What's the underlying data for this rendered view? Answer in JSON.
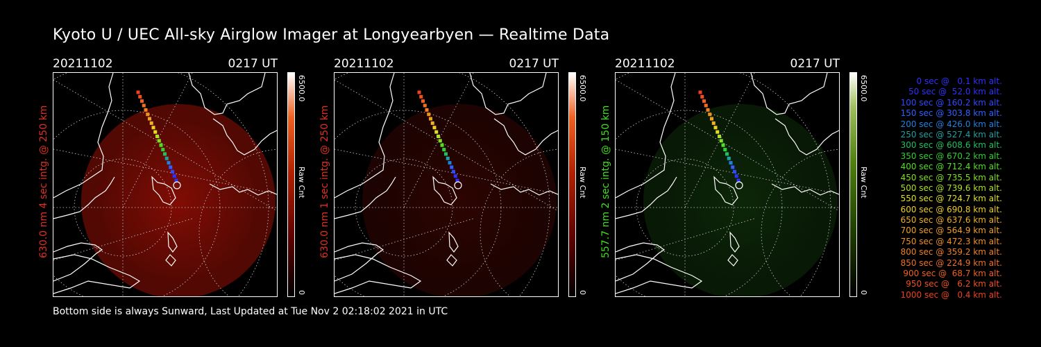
{
  "title": "Kyoto U / UEC All-sky Airglow Imager at Longyearbyen — Realtime Data",
  "footer": "Bottom side is always Sunward, Last Updated at Tue Nov  2 02:18:02 2021 in UTC",
  "panels": [
    {
      "date": "20211102",
      "time": "0217 UT",
      "side_label": "630.0 nm 4 sec intg. @ 250 km",
      "side_color": "#e03020",
      "cbar_max": "6500.0",
      "cbar_min": "0",
      "cbar_unit": "Raw Cnt",
      "glow": "red",
      "intensity": 1.0
    },
    {
      "date": "20211102",
      "time": "0217 UT",
      "side_label": "630.0 nm 1 sec intg. @ 250 km",
      "side_color": "#e03020",
      "cbar_max": "6500.0",
      "cbar_min": "0",
      "cbar_unit": "Raw Cnt",
      "glow": "red",
      "intensity": 0.35
    },
    {
      "date": "20211102",
      "time": "0217 UT",
      "side_label": "557.7 nm 2 sec intg. @ 150 km",
      "side_color": "#40e020",
      "cbar_max": "6500.0",
      "cbar_min": "0",
      "cbar_unit": "Raw Cnt",
      "glow": "green",
      "intensity": 0.5
    }
  ],
  "legend": [
    {
      "text": "0 sec @   0.1 km alt.",
      "color": "#3030ff"
    },
    {
      "text": "50 sec @  52.0 km alt.",
      "color": "#3030ff"
    },
    {
      "text": "100 sec @ 160.2 km alt.",
      "color": "#3048ff"
    },
    {
      "text": "150 sec @ 303.8 km alt.",
      "color": "#3060ff"
    },
    {
      "text": "200 sec @ 426.0 km alt.",
      "color": "#2080e0"
    },
    {
      "text": "250 sec @ 527.4 km alt.",
      "color": "#20a0a0"
    },
    {
      "text": "300 sec @ 608.6 km alt.",
      "color": "#20c060"
    },
    {
      "text": "350 sec @ 670.2 km alt.",
      "color": "#30d030"
    },
    {
      "text": "400 sec @ 712.4 km alt.",
      "color": "#50e020"
    },
    {
      "text": "450 sec @ 735.5 km alt.",
      "color": "#80e020"
    },
    {
      "text": "500 sec @ 739.6 km alt.",
      "color": "#b0e020"
    },
    {
      "text": "550 sec @ 724.7 km alt.",
      "color": "#e0e020"
    },
    {
      "text": "600 sec @ 690.8 km alt.",
      "color": "#f0d020"
    },
    {
      "text": "650 sec @ 637.6 km alt.",
      "color": "#f0b020"
    },
    {
      "text": "700 sec @ 564.9 km alt.",
      "color": "#f0a020"
    },
    {
      "text": "750 sec @ 472.3 km alt.",
      "color": "#f09020"
    },
    {
      "text": "800 sec @ 359.2 km alt.",
      "color": "#f08020"
    },
    {
      "text": "850 sec @ 224.9 km alt.",
      "color": "#f07020"
    },
    {
      "text": "900 sec @  68.7 km alt.",
      "color": "#f06020"
    },
    {
      "text": "950 sec @   6.2 km alt.",
      "color": "#f05020"
    },
    {
      "text": "1000 sec @   0.4 km alt.",
      "color": "#f04020"
    }
  ]
}
